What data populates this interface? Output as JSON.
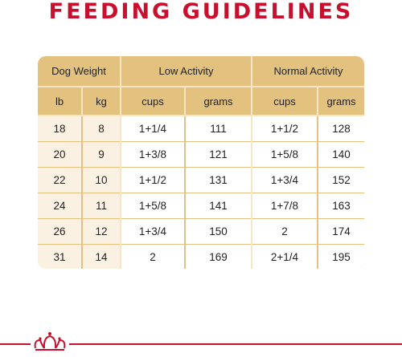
{
  "title": "FEEDING GUIDELINES",
  "headers": {
    "dog_weight": "Dog Weight",
    "low_activity": "Low Activity",
    "normal_activity": "Normal Activity",
    "lb": "lb",
    "kg": "kg",
    "low_cups": "cups",
    "low_grams": "grams",
    "normal_cups": "cups",
    "normal_grams": "grams"
  },
  "rows": [
    {
      "lb": "18",
      "kg": "8",
      "low_cups": "1+1/4",
      "low_grams": "111",
      "normal_cups": "1+1/2",
      "normal_grams": "128"
    },
    {
      "lb": "20",
      "kg": "9",
      "low_cups": "1+3/8",
      "low_grams": "121",
      "normal_cups": "1+5/8",
      "normal_grams": "140"
    },
    {
      "lb": "22",
      "kg": "10",
      "low_cups": "1+1/2",
      "low_grams": "131",
      "normal_cups": "1+3/4",
      "normal_grams": "152"
    },
    {
      "lb": "24",
      "kg": "11",
      "low_cups": "1+5/8",
      "low_grams": "141",
      "normal_cups": "1+7/8",
      "normal_grams": "163"
    },
    {
      "lb": "26",
      "kg": "12",
      "low_cups": "1+3/4",
      "low_grams": "150",
      "normal_cups": "2",
      "normal_grams": "174"
    },
    {
      "lb": "31",
      "kg": "14",
      "low_cups": "2",
      "low_grams": "169",
      "normal_cups": "2+1/4",
      "normal_grams": "195"
    }
  ],
  "colors": {
    "brand_red": "#c8102e",
    "table_gold": "#e3c27f",
    "cell_light": "#fbf1e2"
  },
  "icons": [
    "crown-logo-icon"
  ]
}
